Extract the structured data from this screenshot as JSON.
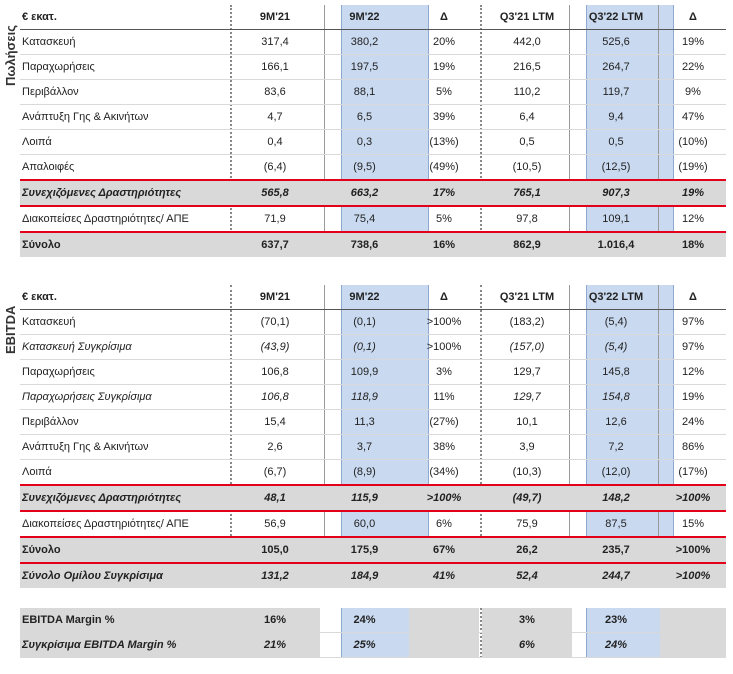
{
  "sales": {
    "side_label": "Πωλήσεις",
    "header": [
      "€ εκατ.",
      "9M'21",
      "9M'22",
      "Δ",
      "Q3'21 LTM",
      "Q3'22 LTM",
      "Δ"
    ],
    "rows": [
      {
        "label": "Κατασκευή",
        "v": [
          "317,4",
          "380,2",
          "20%",
          "442,0",
          "525,6",
          "19%"
        ]
      },
      {
        "label": "Παραχωρήσεις",
        "v": [
          "166,1",
          "197,5",
          "19%",
          "216,5",
          "264,7",
          "22%"
        ]
      },
      {
        "label": "Περιβάλλον",
        "v": [
          "83,6",
          "88,1",
          "5%",
          "110,2",
          "119,7",
          "9%"
        ]
      },
      {
        "label": "Ανάπτυξη Γης & Ακινήτων",
        "v": [
          "4,7",
          "6,5",
          "39%",
          "6,4",
          "9,4",
          "47%"
        ]
      },
      {
        "label": "Λοιπά",
        "v": [
          "0,4",
          "0,3",
          "(13%)",
          "0,5",
          "0,5",
          "(10%)"
        ]
      },
      {
        "label": "Απαλοιφές",
        "v": [
          "(6,4)",
          "(9,5)",
          "(49%)",
          "(10,5)",
          "(12,5)",
          "(19%)"
        ]
      },
      {
        "label": "Συνεχιζόμενες Δραστηριότητες",
        "v": [
          "565,8",
          "663,2",
          "17%",
          "765,1",
          "907,3",
          "19%"
        ]
      },
      {
        "label": "Διακοπείσες Δραστηριότητες/ ΑΠΕ",
        "v": [
          "71,9",
          "75,4",
          "5%",
          "97,8",
          "109,1",
          "12%"
        ]
      },
      {
        "label": "Σύνολο",
        "v": [
          "637,7",
          "738,6",
          "16%",
          "862,9",
          "1.016,4",
          "18%"
        ]
      }
    ]
  },
  "ebitda": {
    "side_label": "EBITDA",
    "header": [
      "€ εκατ.",
      "9M'21",
      "9M'22",
      "Δ",
      "Q3'21 LTM",
      "Q3'22 LTM",
      "Δ"
    ],
    "rows": [
      {
        "label": "Κατασκευή",
        "v": [
          "(70,1)",
          "(0,1)",
          ">100%",
          "(183,2)",
          "(5,4)",
          "97%"
        ]
      },
      {
        "label": "Κατασκευή Συγκρίσιμα",
        "v": [
          "(43,9)",
          "(0,1)",
          ">100%",
          "(157,0)",
          "(5,4)",
          "97%"
        ]
      },
      {
        "label": "Παραχωρήσεις",
        "v": [
          "106,8",
          "109,9",
          "3%",
          "129,7",
          "145,8",
          "12%"
        ]
      },
      {
        "label": "Παραχωρήσεις Συγκρίσιμα",
        "v": [
          "106,8",
          "118,9",
          "11%",
          "129,7",
          "154,8",
          "19%"
        ]
      },
      {
        "label": "Περιβάλλον",
        "v": [
          "15,4",
          "11,3",
          "(27%)",
          "10,1",
          "12,6",
          "24%"
        ]
      },
      {
        "label": "Ανάπτυξη Γης & Ακινήτων",
        "v": [
          "2,6",
          "3,7",
          "38%",
          "3,9",
          "7,2",
          "86%"
        ]
      },
      {
        "label": "Λοιπά",
        "v": [
          "(6,7)",
          "(8,9)",
          "(34%)",
          "(10,3)",
          "(12,0)",
          "(17%)"
        ]
      },
      {
        "label": "Συνεχιζόμενες Δραστηριότητες",
        "v": [
          "48,1",
          "115,9",
          ">100%",
          "(49,7)",
          "148,2",
          ">100%"
        ]
      },
      {
        "label": "Διακοπείσες Δραστηριότητες/ ΑΠΕ",
        "v": [
          "56,9",
          "60,0",
          "6%",
          "75,9",
          "87,5",
          "15%"
        ]
      },
      {
        "label": "Σύνολο",
        "v": [
          "105,0",
          "175,9",
          "67%",
          "26,2",
          "235,7",
          ">100%"
        ]
      },
      {
        "label": "Σύνολο Ομίλου Συγκρίσιμα",
        "v": [
          "131,2",
          "184,9",
          "41%",
          "52,4",
          "244,7",
          ">100%"
        ]
      }
    ]
  },
  "margin": {
    "rows": [
      {
        "label": "EBITDA Margin %",
        "v": [
          "16%",
          "24%",
          "",
          "3%",
          "23%",
          ""
        ]
      },
      {
        "label": "Συγκρίσιμα EBITDA Margin %",
        "v": [
          "21%",
          "25%",
          "",
          "6%",
          "24%",
          ""
        ]
      }
    ]
  }
}
